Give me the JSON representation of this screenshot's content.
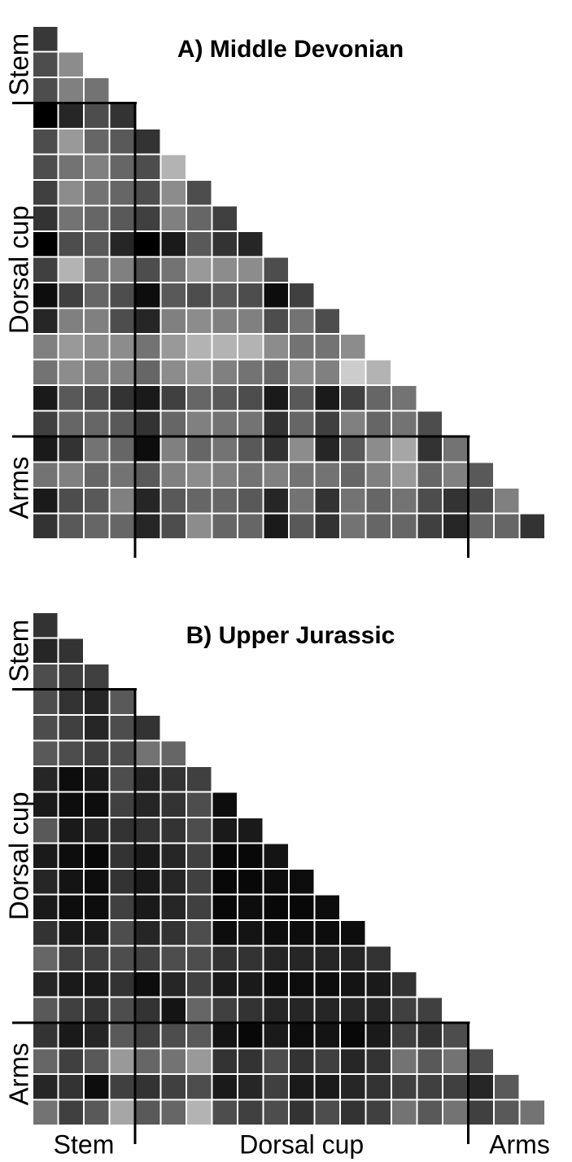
{
  "chart_data": [
    {
      "type": "heatmap",
      "title": "A) Middle Devonian",
      "groups": [
        {
          "name": "Stem",
          "size": 4
        },
        {
          "name": "Dorsal cup",
          "size": 13
        },
        {
          "name": "Arms",
          "size": 4
        }
      ],
      "zlim": [
        0,
        100
      ],
      "colormap": [
        "#000000",
        "#ffffff"
      ],
      "values": [
        [
          22
        ],
        [
          30,
          55
        ],
        [
          30,
          50,
          45
        ],
        [
          0,
          15,
          30,
          20
        ],
        [
          30,
          60,
          40,
          35,
          20
        ],
        [
          30,
          45,
          50,
          40,
          30,
          70
        ],
        [
          25,
          55,
          45,
          40,
          30,
          55,
          30
        ],
        [
          20,
          45,
          40,
          35,
          25,
          50,
          40,
          25
        ],
        [
          0,
          30,
          35,
          15,
          0,
          10,
          35,
          20,
          15
        ],
        [
          25,
          70,
          45,
          50,
          30,
          45,
          60,
          55,
          55,
          30
        ],
        [
          5,
          25,
          40,
          30,
          5,
          35,
          30,
          35,
          30,
          5,
          25
        ],
        [
          15,
          50,
          50,
          30,
          15,
          50,
          55,
          50,
          50,
          30,
          45,
          30
        ],
        [
          50,
          60,
          55,
          55,
          45,
          60,
          70,
          70,
          70,
          55,
          45,
          45,
          55
        ],
        [
          45,
          55,
          50,
          50,
          40,
          55,
          60,
          50,
          45,
          40,
          55,
          50,
          80,
          70
        ],
        [
          10,
          35,
          30,
          20,
          10,
          25,
          40,
          35,
          30,
          10,
          35,
          10,
          25,
          40,
          45
        ],
        [
          25,
          40,
          40,
          35,
          20,
          40,
          50,
          45,
          45,
          20,
          40,
          25,
          50,
          40,
          45,
          30
        ],
        [
          10,
          20,
          45,
          40,
          5,
          50,
          40,
          45,
          35,
          20,
          55,
          15,
          35,
          55,
          65,
          20,
          45
        ],
        [
          45,
          50,
          40,
          45,
          35,
          50,
          55,
          50,
          45,
          50,
          45,
          45,
          40,
          50,
          60,
          40,
          50,
          35
        ],
        [
          10,
          30,
          35,
          50,
          15,
          35,
          40,
          40,
          35,
          15,
          45,
          20,
          45,
          40,
          45,
          30,
          20,
          30,
          50
        ],
        [
          20,
          35,
          40,
          40,
          15,
          30,
          55,
          40,
          40,
          10,
          35,
          20,
          45,
          40,
          40,
          25,
          15,
          40,
          40,
          20
        ]
      ]
    },
    {
      "type": "heatmap",
      "title": "B) Upper Jurassic",
      "groups": [
        {
          "name": "Stem",
          "size": 4
        },
        {
          "name": "Dorsal cup",
          "size": 13
        },
        {
          "name": "Arms",
          "size": 4
        }
      ],
      "zlim": [
        0,
        100
      ],
      "colormap": [
        "#000000",
        "#ffffff"
      ],
      "x_group_labels": [
        "Stem",
        "Dorsal cup",
        "Arms"
      ],
      "values": [
        [
          20
        ],
        [
          15,
          20
        ],
        [
          30,
          25,
          25
        ],
        [
          30,
          20,
          15,
          35
        ],
        [
          30,
          25,
          15,
          30,
          20
        ],
        [
          35,
          30,
          25,
          30,
          45,
          40
        ],
        [
          15,
          5,
          10,
          30,
          15,
          20,
          25
        ],
        [
          10,
          5,
          5,
          25,
          15,
          20,
          30,
          5
        ],
        [
          35,
          10,
          15,
          20,
          20,
          20,
          30,
          10,
          10
        ],
        [
          10,
          5,
          3,
          20,
          10,
          15,
          25,
          3,
          3,
          8
        ],
        [
          15,
          8,
          5,
          20,
          10,
          15,
          25,
          3,
          3,
          5,
          5
        ],
        [
          10,
          5,
          5,
          25,
          10,
          15,
          25,
          3,
          5,
          3,
          3,
          5
        ],
        [
          20,
          10,
          10,
          30,
          15,
          20,
          30,
          5,
          8,
          5,
          5,
          5,
          5
        ],
        [
          40,
          25,
          25,
          30,
          25,
          30,
          30,
          20,
          20,
          15,
          15,
          15,
          15,
          20
        ],
        [
          15,
          10,
          10,
          20,
          5,
          15,
          25,
          10,
          10,
          5,
          5,
          5,
          8,
          10,
          20
        ],
        [
          35,
          25,
          20,
          30,
          20,
          8,
          40,
          25,
          20,
          15,
          15,
          15,
          15,
          15,
          25,
          25
        ],
        [
          20,
          10,
          15,
          35,
          25,
          30,
          35,
          8,
          3,
          10,
          5,
          8,
          3,
          10,
          25,
          20,
          30
        ],
        [
          40,
          25,
          35,
          60,
          40,
          45,
          60,
          20,
          20,
          30,
          20,
          25,
          15,
          20,
          45,
          35,
          45,
          30
        ],
        [
          15,
          20,
          5,
          25,
          20,
          25,
          30,
          10,
          15,
          25,
          10,
          10,
          15,
          20,
          25,
          25,
          25,
          15,
          35
        ],
        [
          45,
          25,
          35,
          65,
          35,
          40,
          70,
          30,
          25,
          30,
          20,
          30,
          20,
          25,
          45,
          35,
          45,
          25,
          35,
          45
        ]
      ]
    }
  ]
}
